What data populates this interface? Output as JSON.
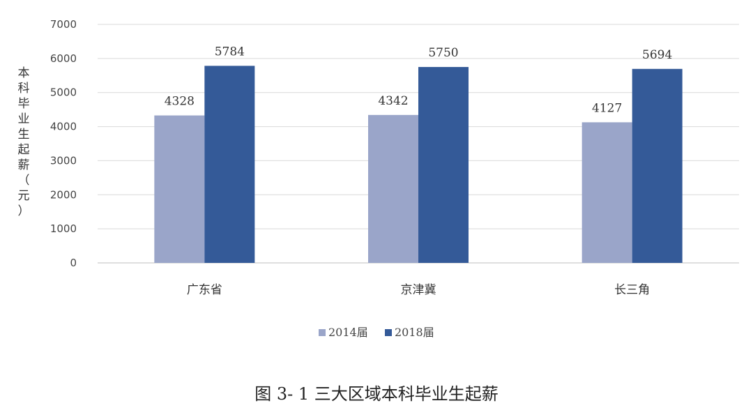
{
  "chart_data": {
    "type": "bar",
    "title": "",
    "ylabel": "本科毕业生起薪（元）",
    "xlabel": "",
    "categories": [
      "广东省",
      "京津冀",
      "长三角"
    ],
    "series": [
      {
        "name": "2014届",
        "values": [
          4328,
          4342,
          4127
        ],
        "color": "#9aa5c9"
      },
      {
        "name": "2018届",
        "values": [
          5784,
          5750,
          5694
        ],
        "color": "#345a98"
      }
    ],
    "ylim": [
      0,
      7000
    ],
    "yticks": [
      "0",
      "1000",
      "2000",
      "3000",
      "4000",
      "5000",
      "6000",
      "7000"
    ],
    "grid": true,
    "legend": "bottom"
  },
  "caption": "图 3- 1  三大区域本科毕业生起薪"
}
